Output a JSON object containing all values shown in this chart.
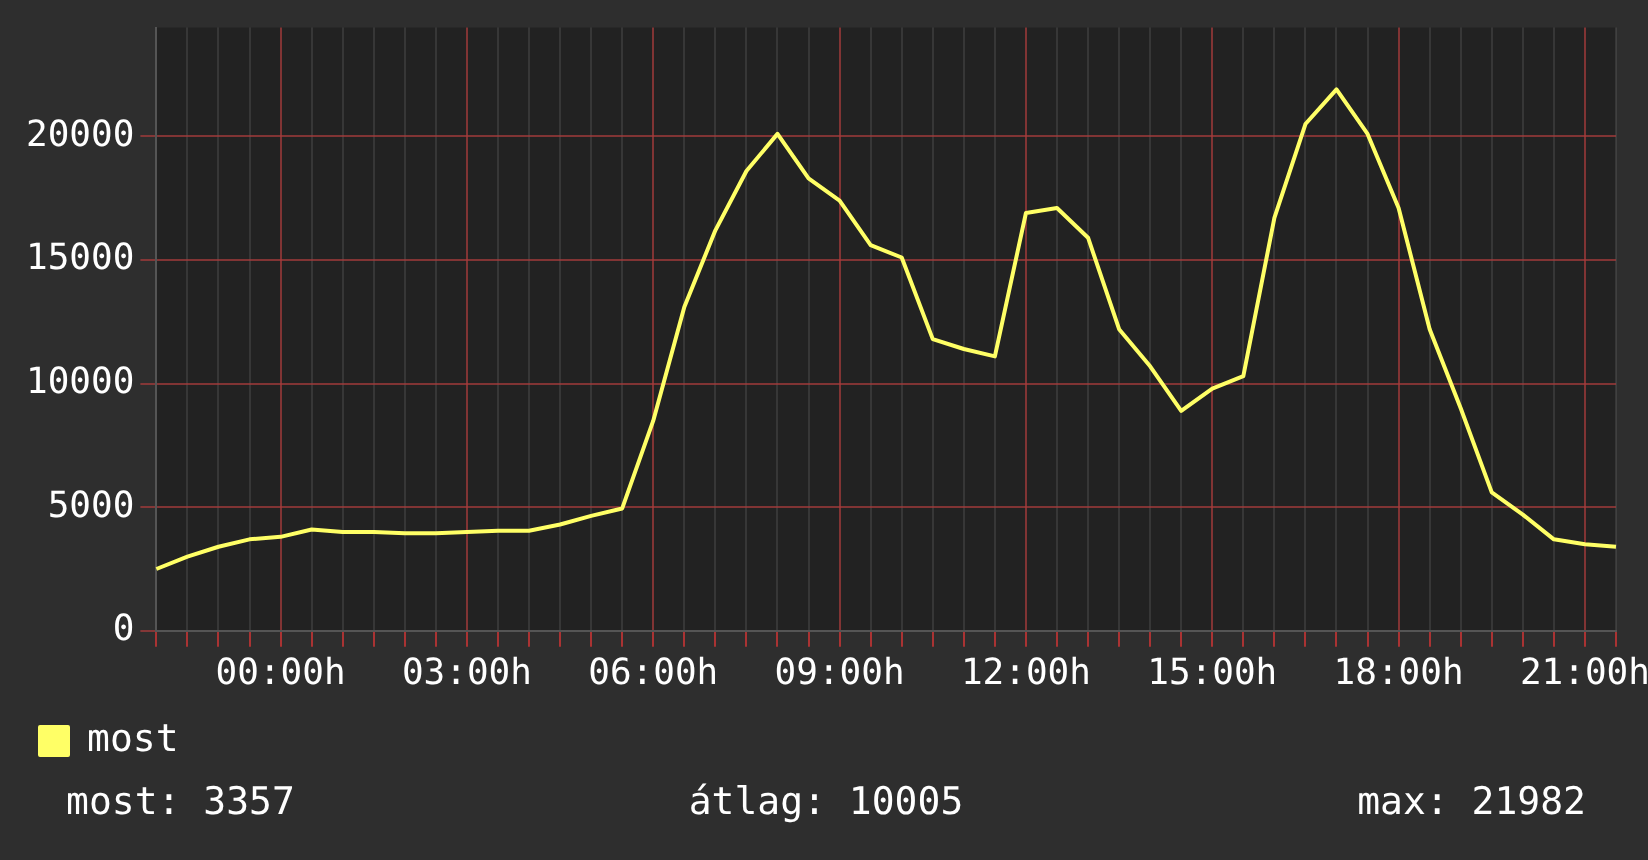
{
  "chart_data": {
    "type": "line",
    "categories": [
      null,
      null,
      null,
      null,
      "00:00h",
      null,
      null,
      null,
      null,
      null,
      "03:00h",
      null,
      null,
      null,
      null,
      null,
      "06:00h",
      null,
      null,
      null,
      null,
      null,
      "09:00h",
      null,
      null,
      null,
      null,
      null,
      "12:00h",
      null,
      null,
      null,
      null,
      null,
      "15:00h",
      null,
      null,
      null,
      null,
      null,
      "18:00h",
      null,
      null,
      null,
      null,
      null,
      "21:00h",
      null
    ],
    "series": [
      {
        "name": "most",
        "color": "#ffff66",
        "values": [
          2500,
          3000,
          3400,
          3700,
          3800,
          4100,
          4000,
          4000,
          3950,
          3950,
          4000,
          4050,
          4050,
          4300,
          4650,
          4950,
          8500,
          13100,
          16200,
          18600,
          20100,
          18300,
          17400,
          15600,
          15100,
          11800,
          11400,
          11100,
          16900,
          17100,
          15900,
          12200,
          10700,
          8900,
          9800,
          10300,
          16700,
          20500,
          21900,
          20100,
          17100,
          12200,
          9000,
          5600,
          4700,
          3700,
          3500,
          3400
        ]
      }
    ],
    "ylim": [
      0,
      24400
    ],
    "yticks": [
      0,
      5000,
      10000,
      15000,
      20000
    ],
    "grid": true,
    "legend": "bottom left",
    "marker": "none",
    "line_style": "solid",
    "annotations": [
      "most: 3357",
      "átlag: 10005",
      "max: 21982"
    ]
  }
}
